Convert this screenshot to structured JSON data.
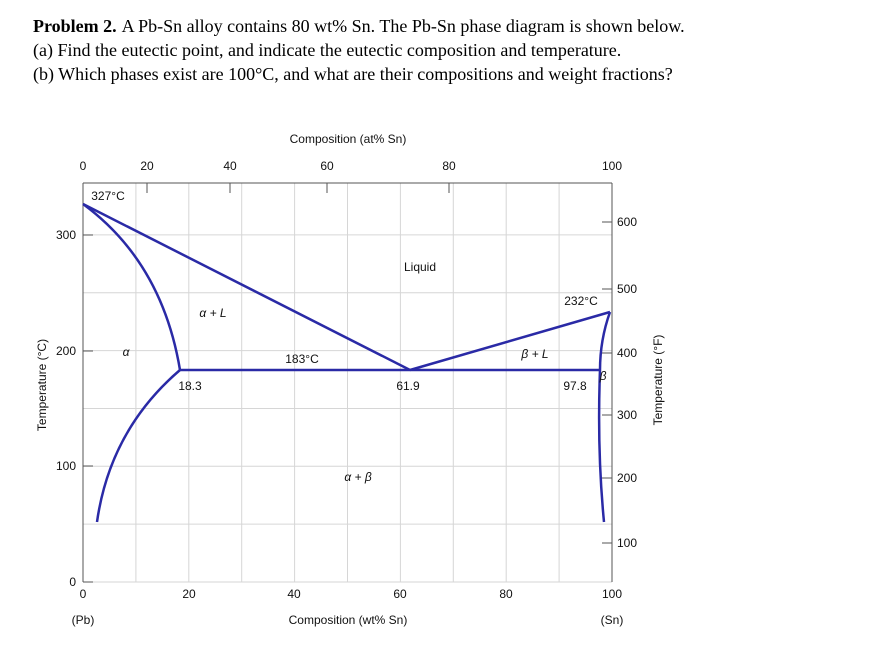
{
  "problem": {
    "label": "Problem 2.",
    "lines": [
      "A Pb-Sn alloy contains 80 wt% Sn. The Pb-Sn phase diagram is shown below.",
      "(a) Find the eutectic point, and indicate the eutectic composition and temperature.",
      "(b) Which phases exist are 100°C, and what are their compositions and weight fractions?"
    ]
  },
  "diagram": {
    "top_axis_title": "Composition (at% Sn)",
    "top_ticks": [
      "0",
      "20",
      "40",
      "60",
      "80",
      "100"
    ],
    "bottom_axis_title": "Composition (wt% Sn)",
    "bottom_ticks": [
      "0",
      "20",
      "40",
      "60",
      "80",
      "100"
    ],
    "left_axis_title": "Temperature (°C)",
    "left_ticks": [
      "0",
      "100",
      "200",
      "300"
    ],
    "right_axis_title": "Temperature (°F)",
    "right_ticks": [
      "100",
      "200",
      "300",
      "400",
      "500",
      "600"
    ],
    "end_labels": [
      "(Pb)",
      "(Sn)"
    ],
    "region_labels": [
      "Liquid",
      "α + L",
      "β + L",
      "α + β",
      "α",
      "β"
    ],
    "annotations": [
      "327°C",
      "232°C",
      "183°C",
      "18.3",
      "61.9",
      "97.8"
    ]
  }
}
